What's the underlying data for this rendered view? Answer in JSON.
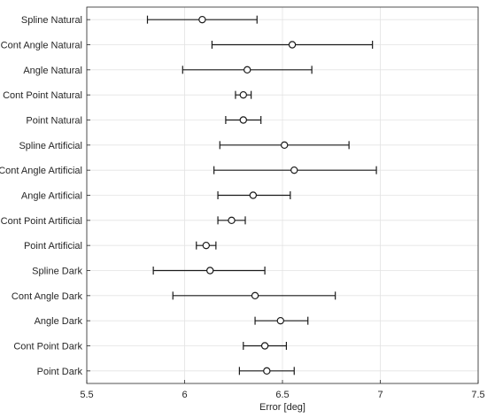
{
  "chart_data": {
    "type": "errorbar",
    "orientation": "horizontal",
    "title": "",
    "xlabel": "Error [deg]",
    "ylabel": "",
    "xlim": [
      5.5,
      7.5
    ],
    "xticks": [
      "5.5",
      "6",
      "6.5",
      "7",
      "7.5"
    ],
    "grid": true,
    "marker": "open-circle",
    "categories": [
      "Spline  Natural",
      "Cont Angle  Natural",
      "Angle  Natural",
      "Cont Point  Natural",
      "Point Natural",
      "Spline Artificial",
      "Cont Angle Artificial",
      "Angle Artificial",
      "Cont Point Artificial",
      "Point Artificial",
      "Spline Dark",
      "Cont Angle Dark",
      "Angle Dark",
      "Cont Point Dark",
      "Point Dark"
    ],
    "means": [
      6.09,
      6.55,
      6.32,
      6.3,
      6.3,
      6.51,
      6.56,
      6.35,
      6.24,
      6.11,
      6.13,
      6.36,
      6.49,
      6.41,
      6.42
    ],
    "lower": [
      5.81,
      6.14,
      5.99,
      6.26,
      6.21,
      6.18,
      6.15,
      6.17,
      6.17,
      6.06,
      5.84,
      5.94,
      6.36,
      6.3,
      6.28
    ],
    "upper": [
      6.37,
      6.96,
      6.65,
      6.34,
      6.39,
      6.84,
      6.98,
      6.54,
      6.31,
      6.16,
      6.41,
      6.77,
      6.63,
      6.52,
      6.56
    ]
  }
}
